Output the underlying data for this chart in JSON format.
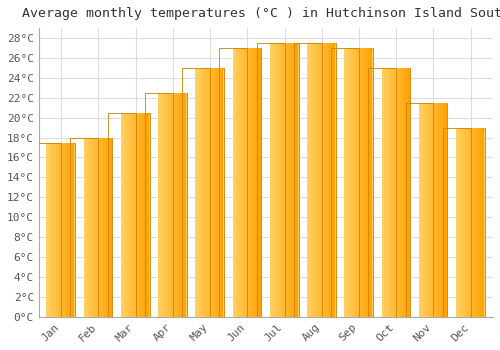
{
  "title": "Average monthly temperatures (°C ) in Hutchinson Island South",
  "months": [
    "Jan",
    "Feb",
    "Mar",
    "Apr",
    "May",
    "Jun",
    "Jul",
    "Aug",
    "Sep",
    "Oct",
    "Nov",
    "Dec"
  ],
  "values": [
    17.5,
    18.0,
    20.5,
    22.5,
    25.0,
    27.0,
    27.5,
    27.5,
    27.0,
    25.0,
    21.5,
    19.0
  ],
  "bar_color_left": "#FFD060",
  "bar_color_right": "#FFA000",
  "bar_edge_color": "#CC8000",
  "background_color": "#FFFFFF",
  "grid_color": "#DDDDDD",
  "ylim": [
    0,
    29
  ],
  "title_fontsize": 9.5,
  "tick_fontsize": 8,
  "tick_color": "#555555",
  "title_color": "#333333",
  "font_family": "monospace"
}
